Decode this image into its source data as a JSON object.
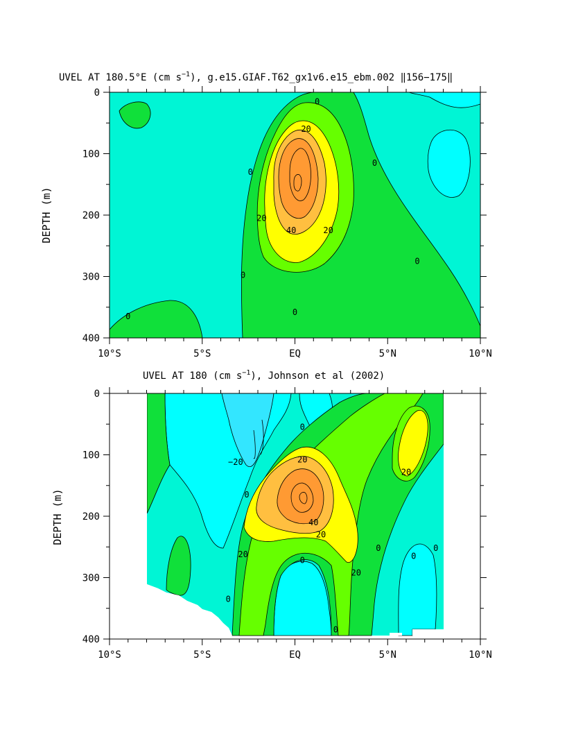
{
  "colors": {
    "cyan": "#00ffff",
    "light_cyan": "#00f5d5",
    "teal_green": "#00e8a8",
    "green": "#10e03a",
    "bright_green": "#66ff00",
    "yellow": "#ffff00",
    "light_orange": "#ffbf40",
    "orange": "#ff9a33",
    "blue_cyan": "#33e6ff"
  },
  "chart_data": [
    {
      "type": "contour",
      "title_parts": {
        "prefix": "UVEL AT 180.5°E (cm s",
        "sup": "−1",
        "suffix": "), g.e15.GIAF.T62_gx1v6.e15_ebm.002 ‖156−175‖"
      },
      "ylabel": "DEPTH (m)",
      "x_ticks": [
        "10°S",
        "5°S",
        "EQ",
        "5°N",
        "10°N"
      ],
      "x_tick_values": [
        -10,
        -5,
        0,
        5,
        10
      ],
      "y_ticks": [
        "0",
        "100",
        "200",
        "300",
        "400"
      ],
      "y_tick_values": [
        0,
        100,
        200,
        300,
        400
      ],
      "xlim": [
        -10,
        10
      ],
      "ylim": [
        400,
        0
      ],
      "contour_levels": [
        -20,
        0,
        10,
        20,
        30,
        40,
        50
      ],
      "contour_labels": [
        {
          "text": "0",
          "lat": 1.2,
          "depth": 15
        },
        {
          "text": "20",
          "lat": 0.6,
          "depth": 60
        },
        {
          "text": "20",
          "lat": -1.8,
          "depth": 205
        },
        {
          "text": "40",
          "lat": -0.2,
          "depth": 225
        },
        {
          "text": "20",
          "lat": 1.8,
          "depth": 225
        },
        {
          "text": "0",
          "lat": -2.4,
          "depth": 130
        },
        {
          "text": "0",
          "lat": 4.3,
          "depth": 115
        },
        {
          "text": "0",
          "lat": 6.6,
          "depth": 275
        },
        {
          "text": "0",
          "lat": -2.8,
          "depth": 298
        },
        {
          "text": "0",
          "lat": 0,
          "depth": 358
        },
        {
          "text": "0",
          "lat": -9.0,
          "depth": 365
        }
      ]
    },
    {
      "type": "contour",
      "title_parts": {
        "prefix": "UVEL AT 180 (cm s",
        "sup": "−1",
        "suffix": "), Johnson et al (2002)"
      },
      "ylabel": "DEPTH (m)",
      "x_ticks": [
        "10°S",
        "5°S",
        "EQ",
        "5°N",
        "10°N"
      ],
      "x_tick_values": [
        -10,
        -5,
        0,
        5,
        10
      ],
      "y_ticks": [
        "0",
        "100",
        "200",
        "300",
        "400"
      ],
      "y_tick_values": [
        0,
        100,
        200,
        300,
        400
      ],
      "xlim": [
        -10,
        10
      ],
      "ylim": [
        400,
        0
      ],
      "data_lat_range": [
        -8,
        8
      ],
      "contour_levels": [
        -20,
        -10,
        0,
        10,
        20,
        30,
        40,
        50
      ],
      "contour_labels": [
        {
          "text": "−20",
          "lat": -3.2,
          "depth": 112
        },
        {
          "text": "20",
          "lat": 0.4,
          "depth": 108
        },
        {
          "text": "20",
          "lat": 6.0,
          "depth": 128
        },
        {
          "text": "0",
          "lat": 0.4,
          "depth": 55
        },
        {
          "text": "0",
          "lat": -2.6,
          "depth": 165
        },
        {
          "text": "40",
          "lat": 1.0,
          "depth": 210
        },
        {
          "text": "20",
          "lat": 1.4,
          "depth": 230
        },
        {
          "text": "20",
          "lat": -2.8,
          "depth": 262
        },
        {
          "text": "20",
          "lat": 3.3,
          "depth": 292
        },
        {
          "text": "0",
          "lat": 0.4,
          "depth": 272
        },
        {
          "text": "0",
          "lat": 4.5,
          "depth": 252
        },
        {
          "text": "0",
          "lat": 6.4,
          "depth": 265
        },
        {
          "text": "0",
          "lat": 7.6,
          "depth": 252
        },
        {
          "text": "0",
          "lat": -3.6,
          "depth": 335
        },
        {
          "text": "0",
          "lat": 2.2,
          "depth": 385
        }
      ]
    }
  ]
}
